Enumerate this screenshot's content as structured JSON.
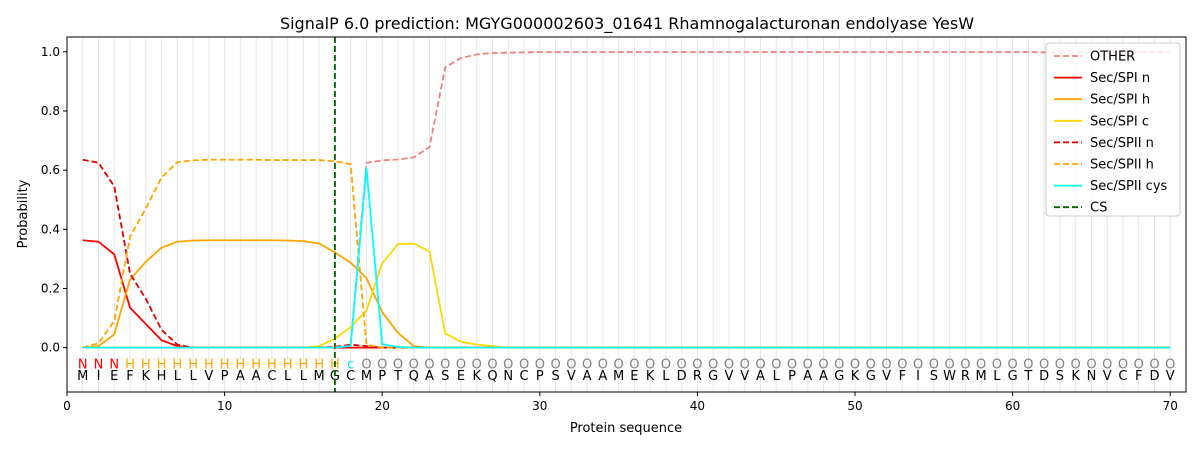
{
  "chart_data": {
    "type": "line",
    "title": "SignalP 6.0 prediction: MGYG000002603_01641 Rhamnogalacturonan endolyase YesW",
    "xlabel": "Protein sequence",
    "ylabel": "Probability",
    "xlim": [
      0,
      71
    ],
    "ylim": [
      -0.15,
      1.05
    ],
    "xticks": [
      0,
      10,
      20,
      30,
      40,
      50,
      60,
      70
    ],
    "yticks": [
      0.0,
      0.2,
      0.4,
      0.6,
      0.8,
      1.0
    ],
    "xtick_labels": [
      "0",
      "10",
      "20",
      "30",
      "40",
      "50",
      "60",
      "70"
    ],
    "ytick_labels": [
      "0.0",
      "0.2",
      "0.4",
      "0.6",
      "0.8",
      "1.0"
    ],
    "grid": "vertical lines at each residue",
    "legend_position": "top-right",
    "cleavage_site": 17,
    "sequence": [
      "M",
      "I",
      "E",
      "F",
      "K",
      "H",
      "L",
      "L",
      "V",
      "P",
      "A",
      "A",
      "C",
      "L",
      "L",
      "M",
      "G",
      "C",
      "M",
      "P",
      "T",
      "Q",
      "A",
      "S",
      "E",
      "K",
      "Q",
      "N",
      "C",
      "P",
      "S",
      "V",
      "A",
      "A",
      "M",
      "E",
      "K",
      "L",
      "D",
      "R",
      "G",
      "V",
      "V",
      "A",
      "L",
      "P",
      "A",
      "A",
      "G",
      "K",
      "G",
      "V",
      "F",
      "I",
      "S",
      "W",
      "R",
      "M",
      "L",
      "G",
      "T",
      "D",
      "S",
      "K",
      "N",
      "V",
      "C",
      "F",
      "D",
      "V"
    ],
    "region_labels": [
      "N",
      "N",
      "N",
      "H",
      "H",
      "H",
      "H",
      "H",
      "H",
      "H",
      "H",
      "H",
      "H",
      "H",
      "H",
      "H",
      "H",
      "c",
      "O",
      "O",
      "O",
      "O",
      "O",
      "O",
      "O",
      "O",
      "O",
      "O",
      "O",
      "O",
      "O",
      "O",
      "O",
      "O",
      "O",
      "O",
      "O",
      "O",
      "O",
      "O",
      "O",
      "O",
      "O",
      "O",
      "O",
      "O",
      "O",
      "O",
      "O",
      "O",
      "O",
      "O",
      "O",
      "O",
      "O",
      "O",
      "O",
      "O",
      "O",
      "O",
      "O",
      "O",
      "O",
      "O",
      "O",
      "O",
      "O",
      "O",
      "O",
      "O"
    ],
    "region_colors": {
      "N": "#ff0000",
      "H": "#ffa500",
      "c": "#00e5ee",
      "O": "#808080"
    },
    "series": [
      {
        "name": "OTHER",
        "color": "#f08080",
        "dash": "dashed",
        "values": [
          0,
          0,
          0,
          0,
          0,
          0,
          0,
          0,
          0,
          0,
          0,
          0,
          0,
          0,
          0,
          0,
          0.005,
          0.01,
          0.625,
          0.633,
          0.636,
          0.643,
          0.678,
          0.948,
          0.979,
          0.991,
          0.996,
          0.997,
          0.998,
          0.999,
          0.999,
          0.999,
          0.999,
          0.999,
          0.999,
          0.999,
          0.999,
          0.999,
          0.999,
          0.999,
          0.999,
          0.999,
          0.999,
          0.999,
          0.999,
          0.999,
          0.999,
          0.999,
          0.999,
          0.999,
          0.999,
          0.999,
          0.999,
          0.999,
          0.999,
          0.999,
          0.999,
          0.999,
          0.999,
          0.999,
          0.999,
          0.998,
          0.998,
          0.998,
          0.998,
          0.998,
          0.998,
          0.998,
          0.998,
          0.998
        ]
      },
      {
        "name": "Sec/SPI n",
        "color": "#ff0000",
        "dash": "solid",
        "values": [
          0.363,
          0.358,
          0.315,
          0.135,
          0.08,
          0.025,
          0.005,
          0,
          0,
          0,
          0,
          0,
          0,
          0,
          0,
          0,
          0,
          0,
          0,
          0,
          0,
          0,
          0,
          0,
          0,
          0,
          0,
          0,
          0,
          0,
          0,
          0,
          0,
          0,
          0,
          0,
          0,
          0,
          0,
          0,
          0,
          0,
          0,
          0,
          0,
          0,
          0,
          0,
          0,
          0,
          0,
          0,
          0,
          0,
          0,
          0,
          0,
          0,
          0,
          0,
          0,
          0,
          0,
          0,
          0,
          0,
          0,
          0,
          0,
          0
        ]
      },
      {
        "name": "Sec/SPI h",
        "color": "#ffa500",
        "dash": "solid",
        "values": [
          0,
          0.005,
          0.045,
          0.23,
          0.29,
          0.338,
          0.358,
          0.362,
          0.363,
          0.363,
          0.363,
          0.363,
          0.363,
          0.362,
          0.36,
          0.352,
          0.322,
          0.287,
          0.235,
          0.12,
          0.05,
          0.005,
          0,
          0,
          0,
          0,
          0,
          0,
          0,
          0,
          0,
          0,
          0,
          0,
          0,
          0,
          0,
          0,
          0,
          0,
          0,
          0,
          0,
          0,
          0,
          0,
          0,
          0,
          0,
          0,
          0,
          0,
          0,
          0,
          0,
          0,
          0,
          0,
          0,
          0,
          0,
          0,
          0,
          0,
          0,
          0,
          0,
          0,
          0,
          0
        ]
      },
      {
        "name": "Sec/SPI c",
        "color": "#ffd700",
        "dash": "solid",
        "values": [
          0,
          0,
          0,
          0,
          0,
          0,
          0,
          0,
          0,
          0,
          0,
          0,
          0,
          0,
          0,
          0.005,
          0.03,
          0.07,
          0.125,
          0.285,
          0.35,
          0.352,
          0.325,
          0.048,
          0.02,
          0.01,
          0.005,
          0,
          0,
          0,
          0,
          0,
          0,
          0,
          0,
          0,
          0,
          0,
          0,
          0,
          0,
          0,
          0,
          0,
          0,
          0,
          0,
          0,
          0,
          0,
          0,
          0,
          0,
          0,
          0,
          0,
          0,
          0,
          0,
          0,
          0,
          0,
          0,
          0,
          0,
          0,
          0,
          0,
          0,
          0
        ]
      },
      {
        "name": "Sec/SPII n",
        "color": "#dd0000",
        "dash": "dashed",
        "values": [
          0.635,
          0.625,
          0.545,
          0.25,
          0.165,
          0.06,
          0.01,
          0,
          0,
          0,
          0,
          0,
          0,
          0,
          0,
          0,
          0,
          0.01,
          0.005,
          0,
          0,
          0,
          0,
          0,
          0,
          0,
          0,
          0,
          0,
          0,
          0,
          0,
          0,
          0,
          0,
          0,
          0,
          0,
          0,
          0,
          0,
          0,
          0,
          0,
          0,
          0,
          0,
          0,
          0,
          0,
          0,
          0,
          0,
          0,
          0,
          0,
          0,
          0,
          0,
          0,
          0,
          0,
          0,
          0,
          0,
          0,
          0,
          0,
          0,
          0
        ]
      },
      {
        "name": "Sec/SPII h",
        "color": "#ffa500",
        "dash": "dashed",
        "values": [
          0,
          0.015,
          0.09,
          0.375,
          0.47,
          0.575,
          0.627,
          0.633,
          0.635,
          0.635,
          0.635,
          0.635,
          0.634,
          0.634,
          0.634,
          0.634,
          0.63,
          0.62,
          0.01,
          0,
          0,
          0,
          0,
          0,
          0,
          0,
          0,
          0,
          0,
          0,
          0,
          0,
          0,
          0,
          0,
          0,
          0,
          0,
          0,
          0,
          0,
          0,
          0,
          0,
          0,
          0,
          0,
          0,
          0,
          0,
          0,
          0,
          0,
          0,
          0,
          0,
          0,
          0,
          0,
          0,
          0,
          0,
          0,
          0,
          0,
          0,
          0,
          0,
          0,
          0
        ]
      },
      {
        "name": "Sec/SPII cys",
        "color": "#00ffff",
        "dash": "solid",
        "values": [
          0,
          0,
          0,
          0,
          0,
          0,
          0,
          0,
          0,
          0,
          0,
          0,
          0,
          0,
          0,
          0,
          0,
          0.006,
          0.608,
          0.012,
          0.002,
          0,
          0,
          0,
          0,
          0,
          0,
          0,
          0,
          0,
          0,
          0,
          0,
          0,
          0,
          0,
          0,
          0,
          0,
          0,
          0,
          0,
          0,
          0,
          0,
          0,
          0,
          0,
          0,
          0,
          0,
          0,
          0,
          0,
          0,
          0,
          0,
          0,
          0,
          0,
          0,
          0,
          0,
          0,
          0,
          0,
          0,
          0,
          0,
          0
        ]
      },
      {
        "name": "CS",
        "color": "#006400",
        "dash": "dashed",
        "values": []
      }
    ]
  }
}
